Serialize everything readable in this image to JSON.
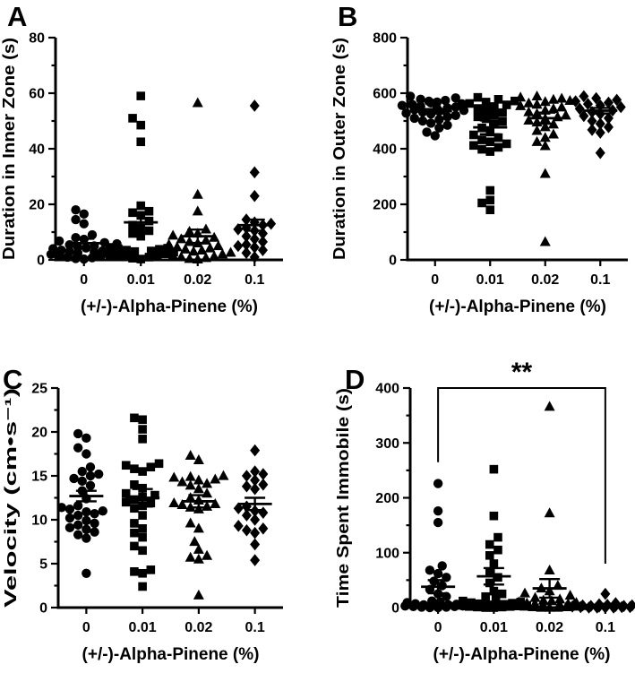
{
  "colors": {
    "marker": "#000000",
    "axis": "#000000",
    "background": "#ffffff"
  },
  "chart_data": [
    {
      "type": "scatter",
      "panel_label": "A",
      "ylabel": "Duration in Inner Zone (s)",
      "xlabel": "(+/-)-Alpha-Pinene (%)",
      "categories": [
        "0",
        "0.01",
        "0.02",
        "0.1"
      ],
      "ylim": [
        0,
        80
      ],
      "yticks": [
        0,
        20,
        40,
        60,
        80
      ],
      "ytick_minor": 10,
      "grid": false,
      "legend": false,
      "series": [
        {
          "name": "0",
          "marker": "circle",
          "values": [
            0.3,
            0.5,
            0.8,
            1,
            1.2,
            1.5,
            1.8,
            2,
            2.2,
            2.5,
            2.8,
            3,
            3.2,
            3.5,
            3.8,
            4,
            4.3,
            4.6,
            5,
            5.4,
            5.8,
            6.2,
            6.8,
            7.4,
            8,
            9,
            13,
            14.5,
            16.5,
            18
          ],
          "mean": 6,
          "sem": 1.6
        },
        {
          "name": "0.01",
          "marker": "square",
          "values": [
            0.3,
            0.6,
            1,
            1.5,
            1.8,
            2,
            2.2,
            2.5,
            2.8,
            3,
            3.2,
            3.5,
            3.8,
            4,
            4.2,
            4.5,
            8.5,
            9.5,
            10.5,
            11.5,
            12.5,
            14,
            16,
            17,
            17.5,
            19.5,
            42.5,
            48.5,
            51,
            59
          ],
          "mean": 13.5,
          "sem": 3.7
        },
        {
          "name": "0.02",
          "marker": "triangle",
          "values": [
            0.2,
            0.4,
            0.7,
            1,
            1.3,
            1.6,
            2,
            2.3,
            2.6,
            3,
            3.4,
            3.8,
            4.2,
            4.6,
            5,
            5.5,
            6,
            6.5,
            7,
            7.5,
            8,
            8.8,
            9.5,
            10.2,
            11,
            17.5,
            23.5,
            56.5
          ],
          "mean": 8.5,
          "sem": 2.4
        },
        {
          "name": "0.1",
          "marker": "diamond",
          "values": [
            1,
            2.5,
            3.5,
            4.5,
            5,
            5.5,
            6.5,
            7.5,
            8.5,
            9.5,
            10.5,
            11,
            11.5,
            12.5,
            13,
            13.5,
            14.5,
            23,
            31.5,
            55.5
          ],
          "mean": 12.5,
          "sem": 2
        }
      ]
    },
    {
      "type": "scatter",
      "panel_label": "B",
      "ylabel": "Duration in Outer Zone (s)",
      "xlabel": "(+/-)-Alpha-Pinene (%)",
      "categories": [
        "0",
        "0.01",
        "0.02",
        "0.1"
      ],
      "ylim": [
        0,
        800
      ],
      "yticks": [
        0,
        200,
        400,
        600,
        800
      ],
      "ytick_minor": 100,
      "grid": false,
      "legend": false,
      "series": [
        {
          "name": "0",
          "marker": "circle",
          "values": [
            447,
            460,
            475,
            485,
            492,
            500,
            505,
            510,
            515,
            520,
            525,
            528,
            532,
            535,
            538,
            541,
            544,
            547,
            550,
            553,
            556,
            559,
            562,
            565,
            568,
            571,
            574,
            578,
            583,
            589
          ],
          "mean": 535,
          "sem": 8
        },
        {
          "name": "0.01",
          "marker": "square",
          "values": [
            180,
            205,
            215,
            250,
            390,
            398,
            405,
            412,
            418,
            425,
            432,
            440,
            450,
            460,
            475,
            488,
            498,
            508,
            515,
            522,
            530,
            538,
            545,
            552,
            558,
            563,
            568,
            572,
            578,
            585
          ],
          "mean": 477,
          "sem": 25
        },
        {
          "name": "0.02",
          "marker": "triangle",
          "values": [
            65,
            310,
            410,
            425,
            440,
            452,
            465,
            478,
            488,
            495,
            502,
            508,
            514,
            520,
            526,
            532,
            538,
            544,
            549,
            554,
            559,
            564,
            569,
            573,
            577,
            581,
            585,
            589
          ],
          "mean": 510,
          "sem": 20
        },
        {
          "name": "0.1",
          "marker": "diamond",
          "values": [
            385,
            458,
            468,
            478,
            490,
            500,
            510,
            518,
            525,
            532,
            538,
            544,
            550,
            556,
            561,
            566,
            571,
            576,
            582,
            589
          ],
          "mean": 537,
          "sem": 10
        }
      ]
    },
    {
      "type": "scatter",
      "panel_label": "C",
      "ylabel": "Velocity (cm•s⁻¹)",
      "xlabel": "(+/-)-Alpha-Pinene (%)",
      "categories": [
        "0",
        "0.01",
        "0.02",
        "0.1"
      ],
      "ylim": [
        0,
        25
      ],
      "yticks": [
        0,
        5,
        10,
        15,
        20,
        25
      ],
      "ytick_minor": 2.5,
      "grid": false,
      "legend": false,
      "series": [
        {
          "name": "0",
          "marker": "circle",
          "values": [
            3.9,
            7.9,
            8.3,
            8.6,
            8.9,
            9.1,
            9.4,
            9.6,
            9.9,
            10.2,
            10.5,
            10.7,
            10.9,
            11,
            11.2,
            11.4,
            11.6,
            12.4,
            13.3,
            13.9,
            14.4,
            14.7,
            15,
            15.2,
            15.5,
            16,
            17.5,
            18.2,
            19.3,
            19.8
          ],
          "mean": 12.7,
          "sem": 0.6
        },
        {
          "name": "0.01",
          "marker": "square",
          "values": [
            2.4,
            3.9,
            4.1,
            4.3,
            6.5,
            7,
            8,
            8.5,
            9,
            9.6,
            10.5,
            11.3,
            11.6,
            11.9,
            12,
            12.3,
            12.6,
            12.8,
            13,
            13.6,
            14,
            15.5,
            15.8,
            16,
            16.2,
            16.4,
            19.2,
            20.3,
            21.4,
            21.6
          ],
          "mean": 12.5,
          "sem": 1
        },
        {
          "name": "0.02",
          "marker": "triangle",
          "values": [
            1.4,
            5.5,
            5.7,
            5.9,
            6.6,
            7.5,
            9,
            9.6,
            11.2,
            11.4,
            11.5,
            11.7,
            11.8,
            11.9,
            12.2,
            12.5,
            13,
            13.5,
            13.9,
            14.1,
            14.3,
            14.5,
            14.6,
            14.8,
            14.9,
            15,
            16.8,
            17.3
          ],
          "mean": 12.1,
          "sem": 0.7
        },
        {
          "name": "0.1",
          "marker": "diamond",
          "values": [
            5.4,
            7.2,
            8.5,
            8.8,
            9,
            9.3,
            10,
            10.5,
            10.8,
            11,
            11.3,
            11.5,
            13.5,
            13.8,
            14,
            14.5,
            15,
            15.2,
            15.5,
            17.9
          ],
          "mean": 11.8,
          "sem": 0.7
        }
      ]
    },
    {
      "type": "scatter",
      "panel_label": "D",
      "ylabel": "Time Spent Immobile (s)",
      "xlabel": "(+/-)-Alpha-Pinene (%)",
      "categories": [
        "0",
        "0.01",
        "0.02",
        "0.1"
      ],
      "ylim": [
        0,
        400
      ],
      "yticks": [
        0,
        100,
        200,
        300,
        400
      ],
      "ytick_minor": 50,
      "grid": false,
      "legend": false,
      "series": [
        {
          "name": "0",
          "marker": "circle",
          "values": [
            0,
            0,
            1,
            1,
            2,
            2,
            3,
            3,
            4,
            4,
            5,
            5,
            6,
            7,
            8,
            9,
            10,
            12,
            20,
            25,
            33,
            40,
            48,
            55,
            62,
            68,
            76,
            155,
            176,
            226
          ],
          "mean": 38,
          "sem": 12
        },
        {
          "name": "0.01",
          "marker": "square",
          "values": [
            0,
            0,
            1,
            1,
            2,
            2,
            3,
            4,
            4,
            5,
            6,
            7,
            8,
            9,
            10,
            12,
            15,
            20,
            25,
            30,
            45,
            55,
            65,
            80,
            95,
            105,
            115,
            128,
            167,
            252
          ],
          "mean": 57,
          "sem": 15
        },
        {
          "name": "0.02",
          "marker": "triangle",
          "values": [
            0,
            0,
            0,
            1,
            1,
            2,
            2,
            3,
            3,
            4,
            5,
            6,
            7,
            8,
            9,
            10,
            12,
            13,
            15,
            18,
            22,
            26,
            30,
            35,
            40,
            68,
            172,
            366
          ],
          "mean": 35,
          "sem": 17
        },
        {
          "name": "0.1",
          "marker": "diamond",
          "values": [
            0,
            0,
            0,
            0,
            1,
            1,
            1,
            2,
            2,
            2,
            3,
            3,
            3,
            4,
            4,
            5,
            5,
            6,
            8,
            25
          ],
          "mean": 5,
          "sem": 2
        }
      ],
      "significance": {
        "label": "**",
        "from_category": "0",
        "to_category": "0.1",
        "bar_value": 400,
        "left_drop_value": 265,
        "right_drop_value": 80
      }
    }
  ]
}
